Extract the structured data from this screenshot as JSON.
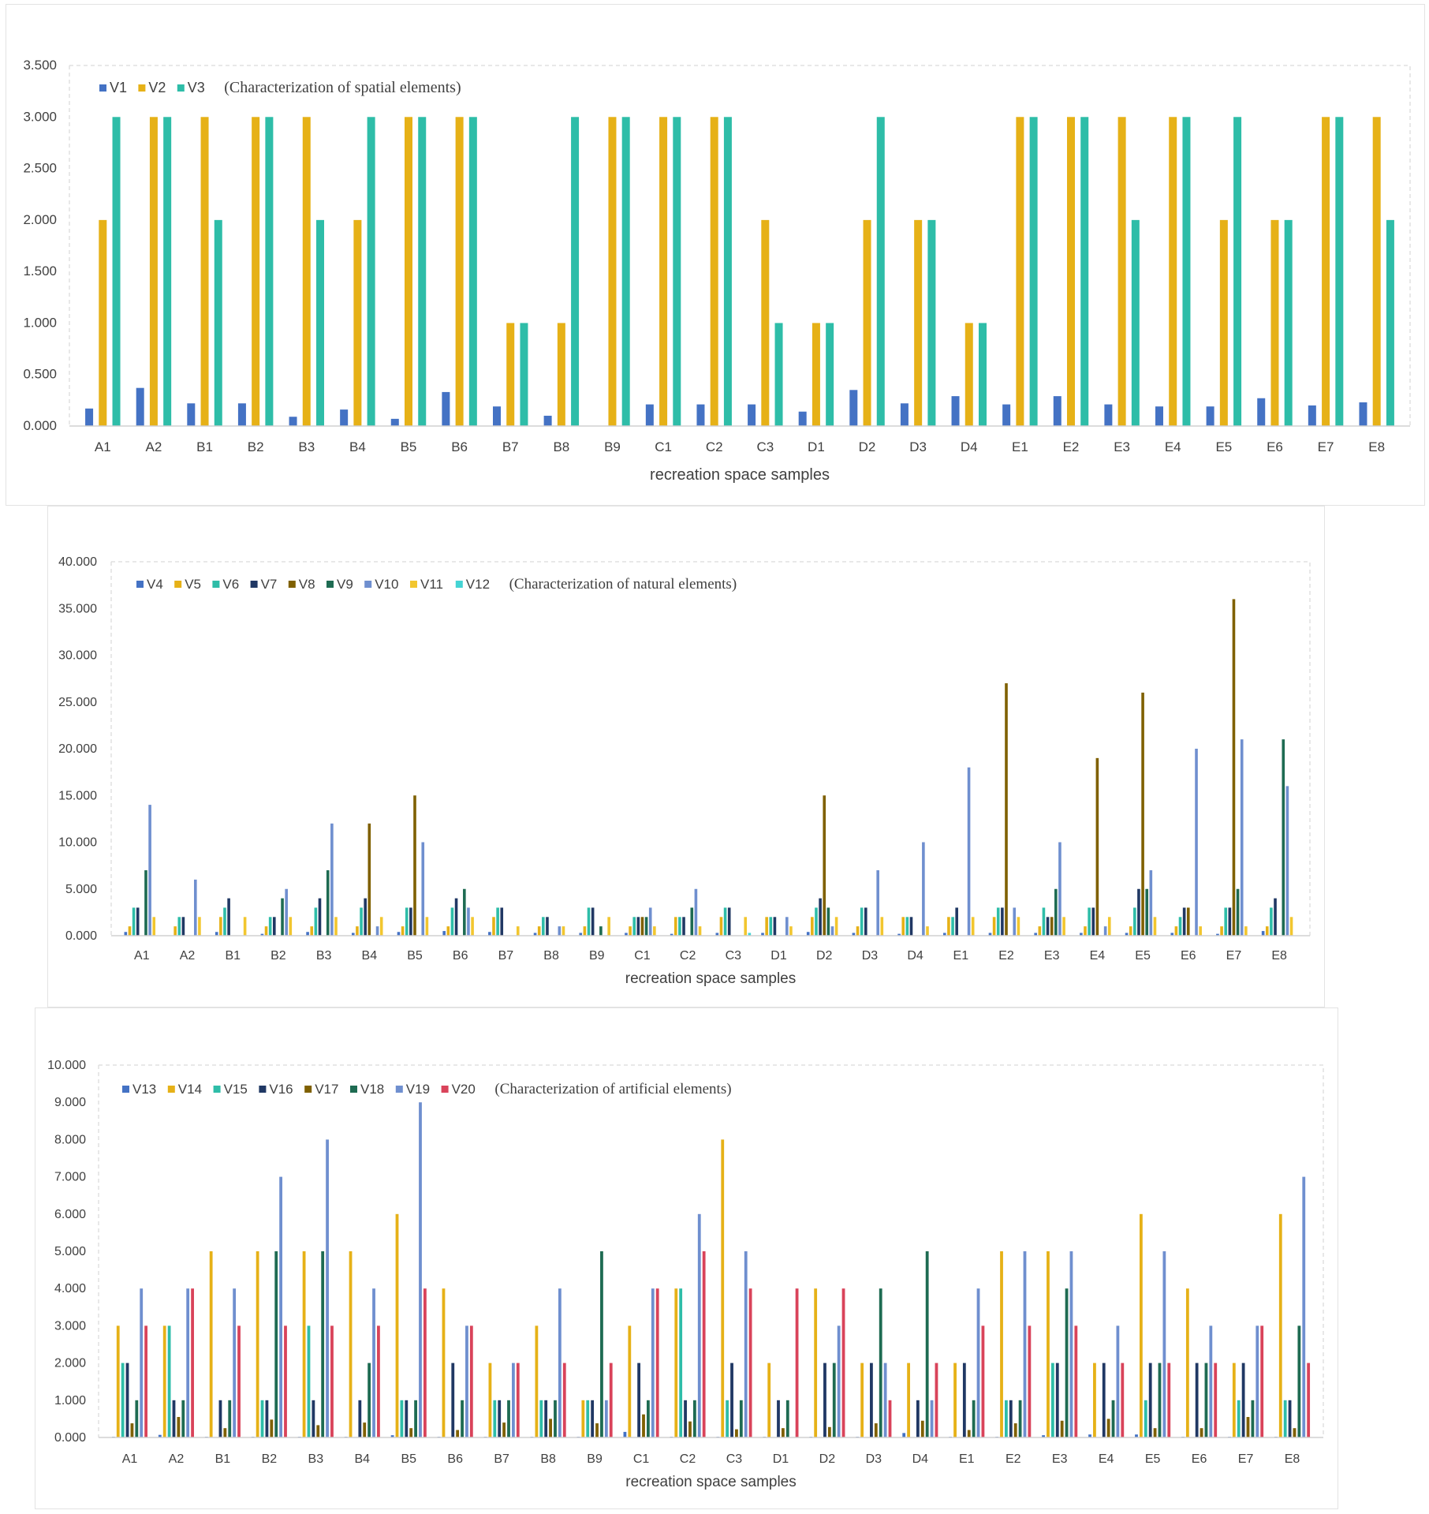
{
  "chart_data": [
    {
      "type": "bar",
      "title": "(Characterization of spatial elements)",
      "xlabel": "recreation space samples",
      "ylabel": "",
      "ylim": [
        0,
        3.5
      ],
      "yticks": [
        "0.000",
        "0.500",
        "1.000",
        "1.500",
        "2.000",
        "2.500",
        "3.000",
        "3.500"
      ],
      "grid": false,
      "legend": "top-left",
      "categories": [
        "A1",
        "A2",
        "B1",
        "B2",
        "B3",
        "B4",
        "B5",
        "B6",
        "B7",
        "B8",
        "B9",
        "C1",
        "C2",
        "C3",
        "D1",
        "D2",
        "D3",
        "D4",
        "E1",
        "E2",
        "E3",
        "E4",
        "E5",
        "E6",
        "E7",
        "E8"
      ],
      "series": [
        {
          "name": "V1",
          "color": "#4472c4",
          "values": [
            0.17,
            0.37,
            0.22,
            0.22,
            0.09,
            0.16,
            0.07,
            0.33,
            0.19,
            0.1,
            0,
            0.21,
            0.21,
            0.21,
            0.14,
            0.35,
            0.22,
            0.29,
            0.21,
            0.29,
            0.21,
            0.19,
            0.19,
            0.27,
            0.2,
            0.23
          ]
        },
        {
          "name": "V2",
          "color": "#e6b117",
          "values": [
            2,
            3,
            3,
            3,
            3,
            2,
            3,
            3,
            1,
            1,
            3,
            3,
            3,
            2,
            1,
            2,
            2,
            1,
            3,
            3,
            3,
            3,
            2,
            2,
            3,
            3
          ]
        },
        {
          "name": "V3",
          "color": "#2ebda8",
          "values": [
            3,
            3,
            2,
            3,
            2,
            3,
            3,
            3,
            1,
            3,
            3,
            3,
            3,
            1,
            1,
            3,
            2,
            1,
            3,
            3,
            2,
            3,
            3,
            2,
            3,
            2
          ]
        }
      ]
    },
    {
      "type": "bar",
      "title": "(Characterization of natural elements)",
      "xlabel": "recreation space samples",
      "ylabel": "",
      "ylim": [
        0,
        40
      ],
      "yticks": [
        "0.000",
        "5.000",
        "10.000",
        "15.000",
        "20.000",
        "25.000",
        "30.000",
        "35.000",
        "40.000"
      ],
      "grid": false,
      "legend": "top-left",
      "categories": [
        "A1",
        "A2",
        "B1",
        "B2",
        "B3",
        "B4",
        "B5",
        "B6",
        "B7",
        "B8",
        "B9",
        "C1",
        "C2",
        "C3",
        "D1",
        "D2",
        "D3",
        "D4",
        "E1",
        "E2",
        "E3",
        "E4",
        "E5",
        "E6",
        "E7",
        "E8"
      ],
      "series": [
        {
          "name": "V4",
          "color": "#4472c4",
          "values": [
            0.4,
            0,
            0.4,
            0.2,
            0.4,
            0.3,
            0.4,
            0.5,
            0.4,
            0.3,
            0.3,
            0.3,
            0.2,
            0.3,
            0.3,
            0.4,
            0.3,
            0.2,
            0.3,
            0.3,
            0.3,
            0.3,
            0.3,
            0.3,
            0.2,
            0.5
          ]
        },
        {
          "name": "V5",
          "color": "#e6b117",
          "values": [
            1,
            1,
            2,
            1,
            1,
            1,
            1,
            1,
            2,
            1,
            1,
            1,
            2,
            2,
            2,
            2,
            1,
            2,
            2,
            2,
            1,
            1,
            1,
            1,
            1,
            1
          ]
        },
        {
          "name": "V6",
          "color": "#2ebda8",
          "values": [
            3,
            2,
            3,
            2,
            3,
            3,
            3,
            3,
            3,
            2,
            3,
            2,
            2,
            3,
            2,
            3,
            3,
            2,
            2,
            3,
            3,
            3,
            3,
            2,
            3,
            3
          ]
        },
        {
          "name": "V7",
          "color": "#203864",
          "values": [
            3,
            2,
            4,
            2,
            4,
            4,
            3,
            4,
            3,
            2,
            3,
            2,
            2,
            3,
            2,
            4,
            3,
            2,
            3,
            3,
            2,
            3,
            5,
            3,
            3,
            4
          ]
        },
        {
          "name": "V8",
          "color": "#7f6000",
          "values": [
            0,
            0,
            0,
            0,
            0,
            12,
            15,
            0,
            0,
            0,
            0,
            2,
            0,
            0,
            0,
            15,
            0,
            0,
            0,
            27,
            2,
            19,
            26,
            3,
            36,
            0
          ]
        },
        {
          "name": "V9",
          "color": "#1e6b52",
          "values": [
            7,
            0,
            0,
            4,
            7,
            0,
            0,
            5,
            0,
            0,
            1,
            2,
            3,
            0,
            0,
            3,
            0,
            0,
            0,
            0,
            5,
            0,
            5,
            0,
            5,
            21
          ]
        },
        {
          "name": "V10",
          "color": "#6f8fcf",
          "values": [
            14,
            6,
            0,
            5,
            12,
            1,
            10,
            3,
            0,
            1,
            0,
            3,
            5,
            0,
            2,
            1,
            7,
            10,
            18,
            3,
            10,
            1,
            7,
            20,
            21,
            16
          ]
        },
        {
          "name": "V11",
          "color": "#f2c62f",
          "values": [
            2,
            2,
            2,
            2,
            2,
            2,
            2,
            2,
            1,
            1,
            2,
            1,
            1,
            2,
            1,
            2,
            2,
            1,
            2,
            2,
            2,
            2,
            2,
            1,
            1,
            2
          ]
        },
        {
          "name": "V12",
          "color": "#44d4d4",
          "values": [
            0,
            0,
            0,
            0,
            0,
            0,
            0,
            0,
            0,
            0,
            0,
            0,
            0,
            0.3,
            0,
            0,
            0,
            0,
            0,
            0,
            0,
            0,
            0,
            0,
            0,
            0
          ]
        }
      ]
    },
    {
      "type": "bar",
      "title": "(Characterization of artificial elements)",
      "xlabel": "recreation space samples",
      "ylabel": "",
      "ylim": [
        0,
        10
      ],
      "yticks": [
        "0.000",
        "1.000",
        "2.000",
        "3.000",
        "4.000",
        "5.000",
        "6.000",
        "7.000",
        "8.000",
        "9.000",
        "10.000"
      ],
      "grid": false,
      "legend": "top-left",
      "categories": [
        "A1",
        "A2",
        "B1",
        "B2",
        "B3",
        "B4",
        "B5",
        "B6",
        "B7",
        "B8",
        "B9",
        "C1",
        "C2",
        "C3",
        "D1",
        "D2",
        "D3",
        "D4",
        "E1",
        "E2",
        "E3",
        "E4",
        "E5",
        "E6",
        "E7",
        "E8"
      ],
      "series": [
        {
          "name": "V13",
          "color": "#4472c4",
          "values": [
            0.02,
            0.07,
            0.02,
            0.02,
            0.02,
            0.02,
            0.06,
            0.02,
            0.02,
            0.02,
            0.02,
            0.15,
            0.02,
            0.02,
            0.02,
            0.02,
            0.02,
            0.12,
            0.02,
            0.02,
            0.06,
            0.08,
            0.08,
            0.02,
            0.02,
            0.02
          ]
        },
        {
          "name": "V14",
          "color": "#e6b117",
          "values": [
            3,
            3,
            5,
            5,
            5,
            5,
            6,
            4,
            2,
            3,
            1,
            3,
            4,
            8,
            2,
            4,
            2,
            2,
            2,
            5,
            5,
            2,
            6,
            4,
            2,
            6
          ]
        },
        {
          "name": "V15",
          "color": "#2ebda8",
          "values": [
            2,
            3,
            0,
            1,
            3,
            0,
            1,
            0,
            1,
            1,
            1,
            0,
            4,
            1,
            0,
            0,
            0,
            0,
            0,
            1,
            2,
            0,
            1,
            0,
            1,
            1
          ]
        },
        {
          "name": "V16",
          "color": "#203864",
          "values": [
            2,
            1,
            1,
            1,
            1,
            1,
            1,
            2,
            1,
            1,
            1,
            2,
            1,
            2,
            1,
            2,
            2,
            1,
            2,
            1,
            2,
            2,
            2,
            2,
            2,
            1
          ]
        },
        {
          "name": "V17",
          "color": "#7f6000",
          "values": [
            0.38,
            0.55,
            0.25,
            0.48,
            0.33,
            0.4,
            0.25,
            0.2,
            0.4,
            0.5,
            0.38,
            0.62,
            0.43,
            0.22,
            0.25,
            0.28,
            0.38,
            0.45,
            0.2,
            0.38,
            0.45,
            0.5,
            0.25,
            0.25,
            0.55,
            0.25
          ]
        },
        {
          "name": "V18",
          "color": "#1e6b52",
          "values": [
            1,
            1,
            1,
            5,
            5,
            2,
            1,
            1,
            1,
            1,
            5,
            1,
            1,
            1,
            1,
            2,
            4,
            5,
            1,
            1,
            4,
            1,
            2,
            2,
            1,
            3
          ]
        },
        {
          "name": "V19",
          "color": "#6f8fcf",
          "values": [
            4,
            4,
            4,
            7,
            8,
            4,
            9,
            3,
            2,
            4,
            1,
            4,
            6,
            5,
            0,
            3,
            2,
            1,
            4,
            5,
            5,
            3,
            5,
            3,
            3,
            7
          ]
        },
        {
          "name": "V20",
          "color": "#d9435a",
          "values": [
            3,
            4,
            3,
            3,
            3,
            3,
            4,
            3,
            2,
            2,
            2,
            4,
            5,
            4,
            4,
            4,
            1,
            2,
            3,
            3,
            3,
            2,
            2,
            2,
            3,
            2
          ]
        }
      ]
    }
  ]
}
